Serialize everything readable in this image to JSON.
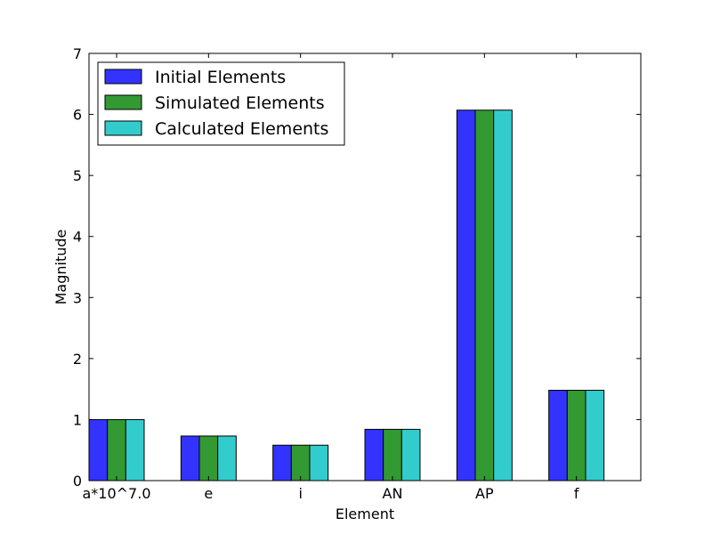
{
  "chart_data": {
    "type": "bar",
    "title": "",
    "xlabel": "Element",
    "ylabel": "Magnitude",
    "categories": [
      "a*10^7.0",
      "e",
      "i",
      "AN",
      "AP",
      "f"
    ],
    "series": [
      {
        "name": "Initial Elements",
        "color": "#3333ff",
        "values": [
          1.0,
          0.73,
          0.58,
          0.84,
          6.07,
          1.48
        ]
      },
      {
        "name": "Simulated Elements",
        "color": "#339933",
        "values": [
          1.0,
          0.73,
          0.58,
          0.84,
          6.07,
          1.48
        ]
      },
      {
        "name": "Calculated Elements",
        "color": "#33cccc",
        "values": [
          1.0,
          0.73,
          0.58,
          0.84,
          6.07,
          1.48
        ]
      }
    ],
    "ylim": [
      0,
      7
    ],
    "yticks": [
      0,
      1,
      2,
      3,
      4,
      5,
      6,
      7
    ],
    "grid": false,
    "legend_position": "top-left"
  }
}
